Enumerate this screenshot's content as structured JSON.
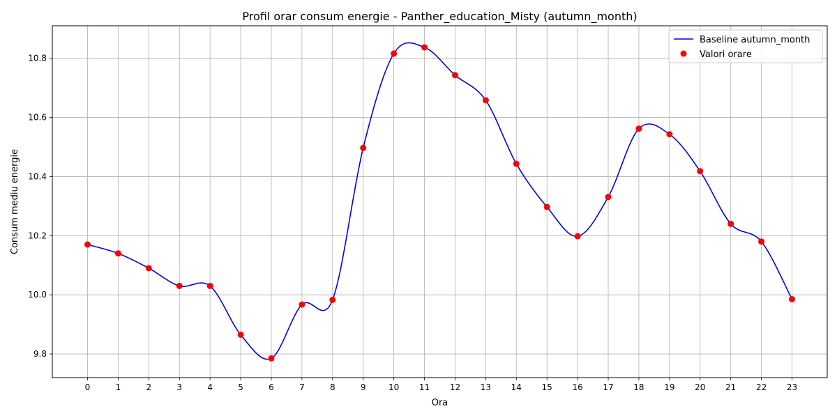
{
  "chart_data": {
    "type": "line",
    "title": "Profil orar consum energie - Panther_education_Misty (autumn_month)",
    "xlabel": "Ora",
    "ylabel": "Consum mediu energie",
    "x": [
      0,
      1,
      2,
      3,
      4,
      5,
      6,
      7,
      8,
      9,
      10,
      11,
      12,
      13,
      14,
      15,
      16,
      17,
      18,
      19,
      20,
      21,
      22,
      23
    ],
    "x_ticks": [
      "0",
      "1",
      "2",
      "3",
      "4",
      "5",
      "6",
      "7",
      "8",
      "9",
      "10",
      "11",
      "12",
      "13",
      "14",
      "15",
      "16",
      "17",
      "18",
      "19",
      "20",
      "21",
      "22",
      "23"
    ],
    "y_ticks": [
      "9.8",
      "10.0",
      "10.2",
      "10.4",
      "10.6",
      "10.8"
    ],
    "xlim": [
      -1.15,
      24.15
    ],
    "ylim": [
      9.72,
      10.91
    ],
    "grid": true,
    "legend_position": "top-right",
    "series": [
      {
        "name": "Baseline autumn_month",
        "kind": "smooth-line",
        "color": "#0000ee",
        "values": [
          10.17,
          10.14,
          10.09,
          10.03,
          10.03,
          9.865,
          9.785,
          9.967,
          9.983,
          10.497,
          10.816,
          10.837,
          10.743,
          10.658,
          10.443,
          10.297,
          10.198,
          10.331,
          10.562,
          10.543,
          10.418,
          10.24,
          10.18,
          9.985
        ]
      },
      {
        "name": "Valori orare",
        "kind": "scatter",
        "color": "#ff0000",
        "values": [
          10.17,
          10.14,
          10.09,
          10.03,
          10.03,
          9.865,
          9.785,
          9.967,
          9.983,
          10.497,
          10.816,
          10.837,
          10.743,
          10.658,
          10.443,
          10.297,
          10.198,
          10.331,
          10.562,
          10.543,
          10.418,
          10.24,
          10.18,
          9.985
        ]
      }
    ]
  }
}
